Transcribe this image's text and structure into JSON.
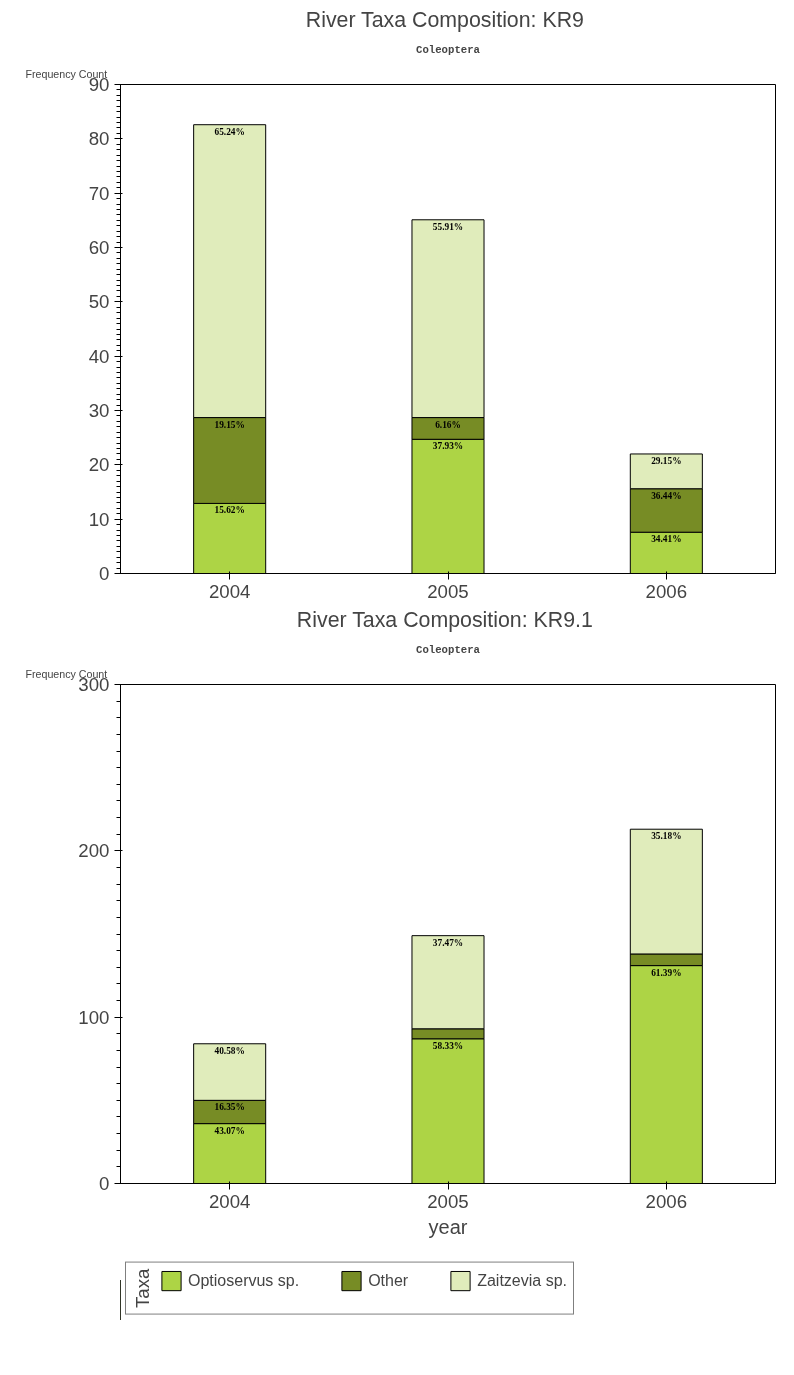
{
  "chart_data": [
    {
      "type": "bar",
      "title": "River Taxa Composition:  KR9",
      "subtitle": "Coleoptera",
      "ylabel": "Frequency Count",
      "stacked": true,
      "categories": [
        "2004",
        "2005",
        "2006"
      ],
      "ylim": [
        0,
        90
      ],
      "yticks": [
        0,
        10,
        20,
        30,
        40,
        50,
        60,
        70,
        80,
        90
      ],
      "grid": false,
      "legend": false,
      "series": [
        {
          "color": "#add445",
          "values": [
            12.9,
            24.7,
            7.6
          ]
        },
        {
          "color": "#778c25",
          "values": [
            15.8,
            4.0,
            8.0
          ]
        },
        {
          "color": "#e0ecbb",
          "values": [
            53.9,
            36.4,
            6.4
          ]
        }
      ],
      "annotations": [
        {
          "text": "15.62%",
          "x": "2004",
          "y": 12.9
        },
        {
          "text": "37.93%",
          "x": "2005",
          "y": 24.7
        },
        {
          "text": "34.41%",
          "x": "2006",
          "y": 7.6
        },
        {
          "text": "19.15%",
          "x": "2004",
          "y": 28.7
        },
        {
          "text": "6.16%",
          "x": "2005",
          "y": 28.7
        },
        {
          "text": "36.44%",
          "x": "2006",
          "y": 15.6
        },
        {
          "text": "65.24%",
          "x": "2004",
          "y": 82.6
        },
        {
          "text": "55.91%",
          "x": "2005",
          "y": 65.1
        },
        {
          "text": "29.15%",
          "x": "2006",
          "y": 22.0
        }
      ]
    },
    {
      "type": "bar",
      "title": "River Taxa Composition:  KR9.1",
      "subtitle": "Coleoptera",
      "ylabel": "Frequency Count",
      "xlabel": "year",
      "legend_title": "Taxa",
      "stacked": true,
      "categories": [
        "2004",
        "2005",
        "2006"
      ],
      "ylim": [
        0,
        300
      ],
      "yticks": [
        0,
        100,
        200,
        300
      ],
      "grid": false,
      "legend": "bottom",
      "series": [
        {
          "name": "Optioservus sp.",
          "color": "#add445",
          "values": [
            36,
            87,
            131
          ]
        },
        {
          "name": "Other",
          "color": "#778c25",
          "values": [
            14,
            6,
            7
          ]
        },
        {
          "name": "Zaitzevia sp.",
          "color": "#e0ecbb",
          "values": [
            34,
            56,
            75
          ]
        }
      ],
      "annotations": [
        {
          "text": "43.07%",
          "x": "2004",
          "y": 36
        },
        {
          "text": "58.33%",
          "x": "2005",
          "y": 87
        },
        {
          "text": "61.39%",
          "x": "2006",
          "y": 131
        },
        {
          "text": "16.35%",
          "x": "2004",
          "y": 50
        },
        {
          "text": "40.58%",
          "x": "2004",
          "y": 84
        },
        {
          "text": "37.47%",
          "x": "2005",
          "y": 149
        },
        {
          "text": "35.18%",
          "x": "2006",
          "y": 213
        }
      ]
    }
  ]
}
